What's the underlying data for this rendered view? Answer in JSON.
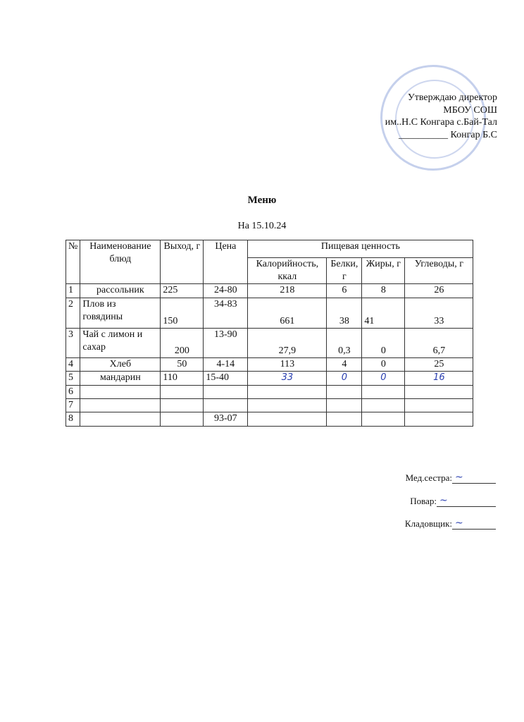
{
  "approval": {
    "line1": "Утверждаю директор",
    "line2": "МБОУ СОШ",
    "line3": "им..Н.С Конгара с.Бай-Тал",
    "line4": "__________ Конгар Б.С"
  },
  "title": "Меню",
  "date": "На 15.10.24",
  "table": {
    "headers": {
      "num": "№",
      "name": "Наименование блюд",
      "yield": "Выход, г",
      "price": "Цена",
      "nutrition": "Пищевая ценность",
      "kcal": "Калорийность, ккал",
      "protein": "Белки, г",
      "fat": "Жиры, г",
      "carbs": "Углеводы, г"
    },
    "rows": [
      {
        "num": "1",
        "name": "рассольник",
        "yield": "225",
        "price": "24-80",
        "kcal": "218",
        "protein": "6",
        "fat": "8",
        "carbs": "26"
      },
      {
        "num": "2",
        "name": "Плов из говядины",
        "yield": "150",
        "price": "34-83",
        "kcal": "661",
        "protein": "38",
        "fat": "41",
        "carbs": "33"
      },
      {
        "num": "3",
        "name": "Чай с лимон и сахар",
        "yield": "200",
        "price": "13-90",
        "kcal": "27,9",
        "protein": "0,3",
        "fat": "0",
        "carbs": "6,7"
      },
      {
        "num": "4",
        "name": "Хлеб",
        "yield": "50",
        "price": "4-14",
        "kcal": "113",
        "protein": "4",
        "fat": "0",
        "carbs": "25"
      },
      {
        "num": "5",
        "name": "мандарин",
        "yield": "110",
        "price": "15-40",
        "kcal": "33",
        "protein": "0",
        "fat": "0",
        "carbs": "16"
      },
      {
        "num": "6",
        "name": "",
        "yield": "",
        "price": "",
        "kcal": "",
        "protein": "",
        "fat": "",
        "carbs": ""
      },
      {
        "num": "7",
        "name": "",
        "yield": "",
        "price": "",
        "kcal": "",
        "protein": "",
        "fat": "",
        "carbs": ""
      },
      {
        "num": "8",
        "name": "",
        "yield": "",
        "price": "93-07",
        "kcal": "",
        "protein": "",
        "fat": "",
        "carbs": ""
      }
    ]
  },
  "signatures": {
    "nurse": "Мед.сестра:",
    "cook": "Повар:",
    "storekeeper": "Кладовщик:"
  }
}
